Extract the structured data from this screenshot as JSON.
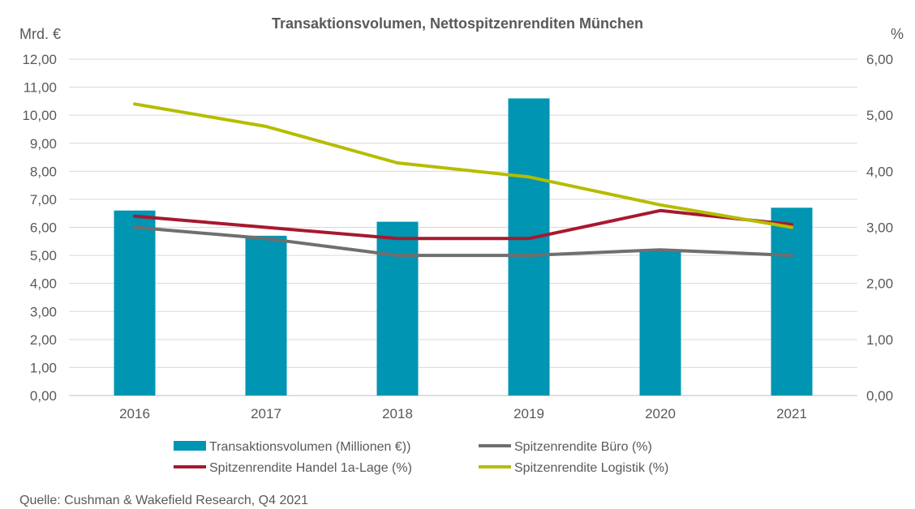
{
  "chart_data": {
    "type": "bar",
    "title": "Transaktionsvolumen, Nettospitzenrenditen München",
    "y_left_unit": "Mrd. €",
    "y_right_unit": "%",
    "categories": [
      "2016",
      "2017",
      "2018",
      "2019",
      "2020",
      "2021"
    ],
    "ylim_left": [
      0,
      12
    ],
    "ylim_right": [
      0,
      6
    ],
    "y_left_ticks": [
      "0,00",
      "1,00",
      "2,00",
      "3,00",
      "4,00",
      "5,00",
      "6,00",
      "7,00",
      "8,00",
      "9,00",
      "10,00",
      "11,00",
      "12,00"
    ],
    "y_right_ticks": [
      "0,00",
      "1,00",
      "2,00",
      "3,00",
      "4,00",
      "5,00",
      "6,00"
    ],
    "series": [
      {
        "name": "Transaktionsvolumen (Millionen €))",
        "kind": "bar",
        "axis": "left",
        "color": "#0095B2",
        "values": [
          6.6,
          5.7,
          6.2,
          10.6,
          5.2,
          6.7
        ]
      },
      {
        "name": "Spitzenrendite Büro (%)",
        "kind": "line",
        "axis": "right",
        "color": "#6F6F6F",
        "values": [
          3.0,
          2.8,
          2.5,
          2.5,
          2.6,
          2.5
        ]
      },
      {
        "name": "Spitzenrendite Handel 1a-Lage (%)",
        "kind": "line",
        "axis": "right",
        "color": "#A6192E",
        "values": [
          3.2,
          3.0,
          2.8,
          2.8,
          3.3,
          3.05
        ]
      },
      {
        "name": "Spitzenrendite Logistik  (%)",
        "kind": "line",
        "axis": "right",
        "color": "#B5BD00",
        "values": [
          5.2,
          4.8,
          4.15,
          3.9,
          3.4,
          3.0
        ]
      }
    ],
    "legend_rows": [
      [
        "Transaktionsvolumen (Millionen €))",
        "Spitzenrendite Büro (%)"
      ],
      [
        "Spitzenrendite Handel 1a-Lage (%)",
        "Spitzenrendite Logistik  (%)"
      ]
    ],
    "source": "Quelle: Cushman & Wakefield Research, Q4 2021",
    "grid": true,
    "legend_position": "bottom"
  }
}
